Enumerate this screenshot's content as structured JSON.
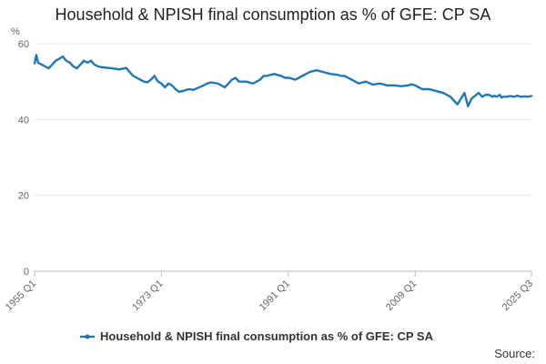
{
  "chart_data": {
    "type": "line",
    "title": "Household & NPISH final consumption as % of GFE: CP SA",
    "ylabel": "%",
    "xlabel": "",
    "ylim": [
      0,
      60
    ],
    "yticks": [
      0,
      20,
      40,
      60
    ],
    "xrange": [
      1955.0,
      2025.5
    ],
    "xticks": [
      {
        "label": "1955 Q1",
        "x": 1955.0
      },
      {
        "label": "1973 Q1",
        "x": 1973.0
      },
      {
        "label": "1991 Q1",
        "x": 1991.0
      },
      {
        "label": "2009 Q1",
        "x": 2009.0
      },
      {
        "label": "2025 Q3",
        "x": 2025.5
      }
    ],
    "series": [
      {
        "name": "Household & NPISH final consumption as % of GFE: CP SA",
        "color": "#1f77b4",
        "x": [
          1955.0,
          1955.25,
          1955.5,
          1956,
          1956.5,
          1957,
          1957.5,
          1958,
          1958.5,
          1959,
          1959.5,
          1960,
          1960.5,
          1961,
          1961.5,
          1962,
          1962.5,
          1963,
          1963.5,
          1964,
          1964.5,
          1965,
          1966,
          1967,
          1968,
          1968.5,
          1969,
          1969.5,
          1970,
          1970.5,
          1971,
          1971.5,
          1972,
          1972.5,
          1973,
          1973.5,
          1974,
          1974.5,
          1975,
          1975.5,
          1976,
          1976.5,
          1977,
          1977.5,
          1978,
          1979,
          1979.5,
          1980,
          1981,
          1982,
          1983,
          1983.5,
          1984,
          1985,
          1986,
          1987,
          1987.5,
          1988,
          1988.5,
          1989,
          1990,
          1990.5,
          1991,
          1991.5,
          1992,
          1993,
          1994,
          1995,
          1996,
          1997,
          1998,
          1998.5,
          1999,
          1999.5,
          2000,
          2001,
          2002,
          2003,
          2004,
          2005,
          2006,
          2007,
          2008,
          2008.5,
          2009,
          2009.5,
          2010,
          2011,
          2012,
          2013,
          2014,
          2015,
          2016,
          2016.5,
          2017,
          2018,
          2018.5,
          2019,
          2019.5,
          2020,
          2020.25,
          2020.5,
          2020.75,
          2021,
          2021.25,
          2021.5,
          2022,
          2022.5,
          2023,
          2023.5,
          2024,
          2024.5,
          2025,
          2025.5
        ],
        "values": [
          54.8,
          57.0,
          55.0,
          54.5,
          54.0,
          53.5,
          54.5,
          55.5,
          56.0,
          56.6,
          55.5,
          55.0,
          54.0,
          53.5,
          54.5,
          55.5,
          55.0,
          55.5,
          54.5,
          54.0,
          53.8,
          53.7,
          53.5,
          53.2,
          53.6,
          52.5,
          51.5,
          51.0,
          50.5,
          50.0,
          49.8,
          50.5,
          51.5,
          50.0,
          49.5,
          48.5,
          49.5,
          49.0,
          48.0,
          47.3,
          47.5,
          47.8,
          48.0,
          47.8,
          48.2,
          49.0,
          49.5,
          49.8,
          49.5,
          48.5,
          50.5,
          51.0,
          50.0,
          50.0,
          49.5,
          50.5,
          51.5,
          51.5,
          51.8,
          52.0,
          51.5,
          51.0,
          51.0,
          50.8,
          50.5,
          51.5,
          52.5,
          53.0,
          52.5,
          52.0,
          51.8,
          51.5,
          51.5,
          51.0,
          50.5,
          49.5,
          50.0,
          49.2,
          49.5,
          49.0,
          49.0,
          48.8,
          49.0,
          49.3,
          49.0,
          48.5,
          48.0,
          48.0,
          47.5,
          47.0,
          46.0,
          44.0,
          47.0,
          43.5,
          45.5,
          47.0,
          46.0,
          46.5,
          46.5,
          46.0,
          46.3,
          46.0,
          46.2,
          46.5,
          45.8,
          46.0,
          46.0,
          46.2,
          46.0,
          46.3,
          46.0,
          46.1,
          46.0,
          46.2
        ]
      }
    ],
    "legend": "bottom",
    "grid": true
  },
  "footer": {
    "source_label": "Source:"
  }
}
